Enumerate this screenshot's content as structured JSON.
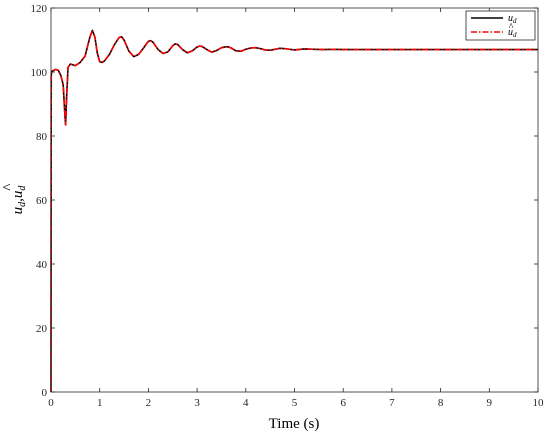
{
  "chart_data": {
    "type": "line",
    "xlabel": "Time (s)",
    "ylabel_main": "u",
    "ylabel_sub": "d",
    "ylabel_sep": ",",
    "ylabel_hat": "^",
    "xlim": [
      0,
      10
    ],
    "ylim": [
      0,
      120
    ],
    "x_ticks": [
      0,
      1,
      2,
      3,
      4,
      5,
      6,
      7,
      8,
      9,
      10
    ],
    "y_ticks": [
      0,
      20,
      40,
      60,
      80,
      100,
      120
    ],
    "grid": false,
    "legend_position": "top-right",
    "legend": [
      {
        "main": "u",
        "sub": "d",
        "hat": false
      },
      {
        "main": "u",
        "sub": "d",
        "hat": true
      }
    ],
    "series": [
      {
        "color": "#000000",
        "style": "solid",
        "x": [
          0,
          0.005,
          0.02,
          0.05,
          0.1,
          0.15,
          0.2,
          0.25,
          0.28,
          0.3,
          0.32,
          0.35,
          0.4,
          0.5,
          0.6,
          0.7,
          0.8,
          0.85,
          0.9,
          0.95,
          1.0,
          1.05,
          1.1,
          1.2,
          1.3,
          1.4,
          1.45,
          1.5,
          1.6,
          1.7,
          1.8,
          1.9,
          2.0,
          2.05,
          2.1,
          2.2,
          2.3,
          2.4,
          2.5,
          2.55,
          2.6,
          2.7,
          2.8,
          2.9,
          3.0,
          3.05,
          3.1,
          3.2,
          3.3,
          3.4,
          3.5,
          3.6,
          3.65,
          3.7,
          3.8,
          3.9,
          4.0,
          4.1,
          4.2,
          4.3,
          4.4,
          4.5,
          4.6,
          4.7,
          4.8,
          5.0,
          5.2,
          5.4,
          5.6,
          5.8,
          6.0,
          6.5,
          7.0,
          7.5,
          8.0,
          8.5,
          9.0,
          9.5,
          10.0
        ],
        "y": [
          0,
          99,
          100.2,
          100.5,
          100.8,
          100.5,
          99,
          96,
          88,
          83.5,
          92,
          101.5,
          102.5,
          102,
          103,
          105,
          111,
          113,
          111,
          106,
          103.2,
          103,
          103.5,
          105.5,
          108.5,
          110.8,
          111,
          110,
          106.5,
          104.8,
          105.5,
          107.5,
          109.6,
          109.8,
          109.2,
          107,
          105.8,
          106.3,
          108.2,
          108.8,
          108.6,
          107,
          106,
          106.6,
          107.8,
          108.1,
          108,
          107,
          106.2,
          106.7,
          107.6,
          107.9,
          107.8,
          107.5,
          106.6,
          106.5,
          107.1,
          107.5,
          107.6,
          107.3,
          106.9,
          106.8,
          107.1,
          107.4,
          107.3,
          106.9,
          107.2,
          107.1,
          107,
          107.1,
          107,
          107,
          107,
          107,
          107,
          107,
          107,
          107,
          107
        ]
      },
      {
        "color": "#ff0000",
        "style": "dashdot",
        "x": [
          0,
          0.005,
          0.02,
          0.05,
          0.1,
          0.15,
          0.2,
          0.25,
          0.28,
          0.3,
          0.32,
          0.35,
          0.4,
          0.5,
          0.6,
          0.7,
          0.8,
          0.85,
          0.9,
          0.95,
          1.0,
          1.05,
          1.1,
          1.2,
          1.3,
          1.4,
          1.45,
          1.5,
          1.6,
          1.7,
          1.8,
          1.9,
          2.0,
          2.05,
          2.1,
          2.2,
          2.3,
          2.4,
          2.5,
          2.55,
          2.6,
          2.7,
          2.8,
          2.9,
          3.0,
          3.05,
          3.1,
          3.2,
          3.3,
          3.4,
          3.5,
          3.6,
          3.65,
          3.7,
          3.8,
          3.9,
          4.0,
          4.1,
          4.2,
          4.3,
          4.4,
          4.5,
          4.6,
          4.7,
          4.8,
          5.0,
          5.2,
          5.4,
          5.6,
          5.8,
          6.0,
          6.5,
          7.0,
          7.5,
          8.0,
          8.5,
          9.0,
          9.5,
          10.0
        ],
        "y": [
          0,
          99,
          100.2,
          100.5,
          100.8,
          100.5,
          99,
          96,
          88,
          83.5,
          92,
          101.5,
          102.5,
          102,
          103,
          105,
          111,
          113,
          111,
          106,
          103.2,
          103,
          103.5,
          105.5,
          108.5,
          110.8,
          111,
          110,
          106.5,
          104.8,
          105.5,
          107.5,
          109.6,
          109.8,
          109.2,
          107,
          105.8,
          106.3,
          108.2,
          108.8,
          108.6,
          107,
          106,
          106.6,
          107.8,
          108.1,
          108,
          107,
          106.2,
          106.7,
          107.6,
          107.9,
          107.8,
          107.5,
          106.6,
          106.5,
          107.1,
          107.5,
          107.6,
          107.3,
          106.9,
          106.8,
          107.1,
          107.4,
          107.3,
          106.9,
          107.2,
          107.1,
          107,
          107.1,
          107,
          107,
          107,
          107,
          107,
          107,
          107,
          107,
          107
        ]
      }
    ]
  }
}
